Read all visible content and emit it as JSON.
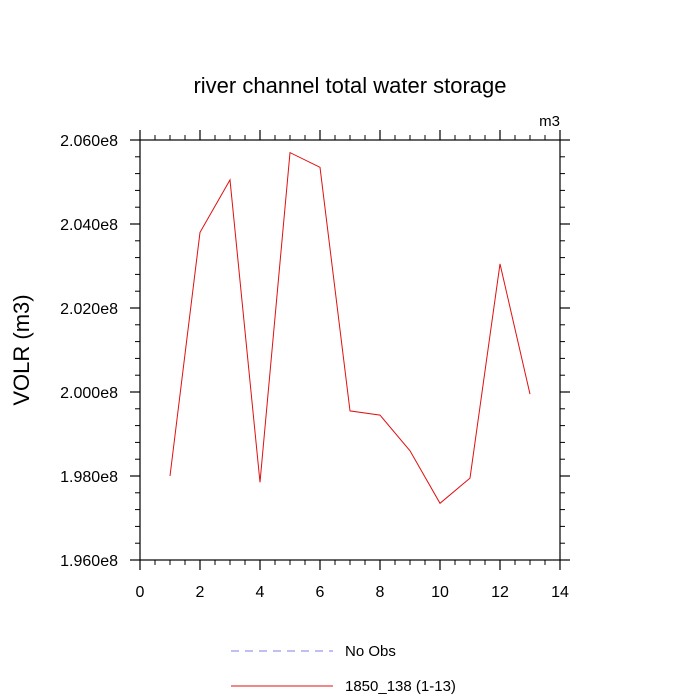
{
  "chart_data": {
    "type": "line",
    "title": "river channel total water storage",
    "units_label": "m3",
    "xlabel": "",
    "ylabel": "VOLR  (m3)",
    "xlim": [
      0,
      14
    ],
    "ylim": [
      196000000,
      206000000
    ],
    "x_ticks": [
      0,
      2,
      4,
      6,
      8,
      10,
      12,
      14
    ],
    "y_ticks": [
      196000000,
      198000000,
      200000000,
      202000000,
      204000000,
      206000000
    ],
    "y_tick_labels": [
      "1.960e8",
      "1.980e8",
      "2.000e8",
      "2.020e8",
      "2.040e8",
      "2.060e8"
    ],
    "grid": false,
    "legend_position": "bottom",
    "series": [
      {
        "name": "No Obs",
        "color": "#8080e0",
        "dash": "dashed",
        "x": [],
        "y": []
      },
      {
        "name": "1850_138 (1-13)",
        "color": "#e01010",
        "dash": "solid",
        "x": [
          1,
          2,
          3,
          4,
          5,
          6,
          7,
          8,
          9,
          10,
          11,
          12,
          13
        ],
        "y": [
          198000000,
          203800000,
          205050000,
          197850000,
          205700000,
          205350000,
          199550000,
          199450000,
          198600000,
          197350000,
          197950000,
          203050000,
          199950000
        ]
      }
    ]
  }
}
